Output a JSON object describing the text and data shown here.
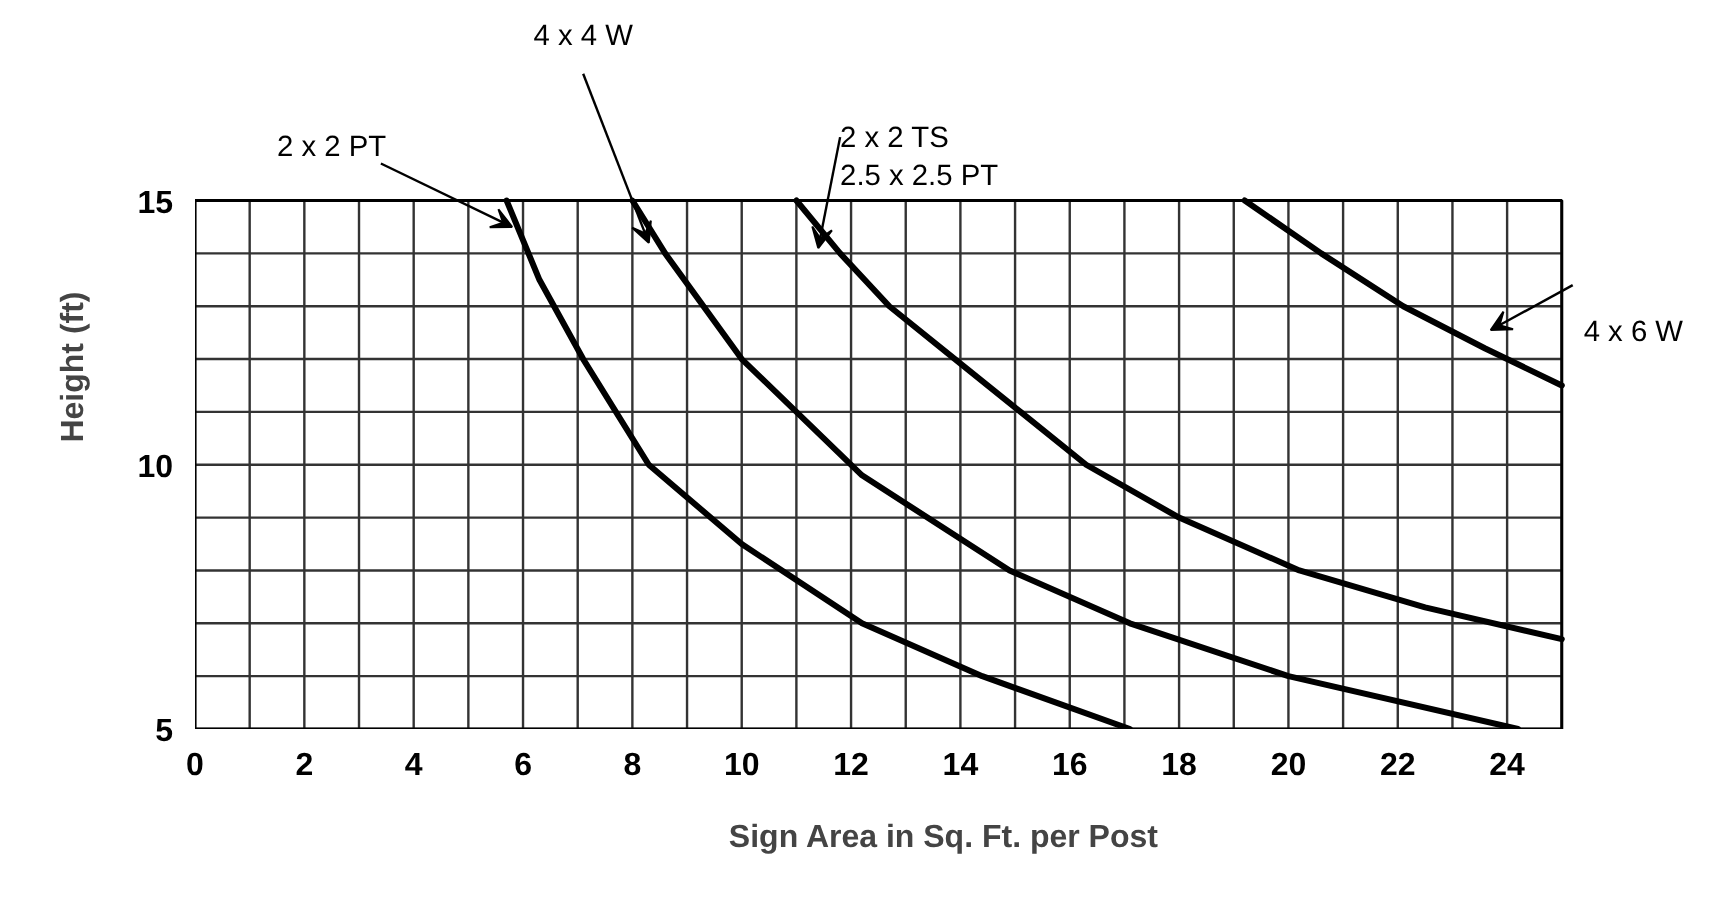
{
  "chart_data": {
    "type": "line",
    "xlabel": "Sign Area in Sq. Ft. per Post",
    "ylabel": "Height (ft)",
    "xlim": [
      0,
      25
    ],
    "ylim": [
      5,
      15
    ],
    "xticks": [
      0,
      {
        "value": 1,
        "label": null
      },
      2,
      {
        "value": 3,
        "label": null
      },
      4,
      {
        "value": 5,
        "label": null
      },
      6,
      {
        "value": 7,
        "label": null
      },
      8,
      {
        "value": 9,
        "label": null
      },
      10,
      {
        "value": 11,
        "label": null
      },
      12,
      {
        "value": 13,
        "label": null
      },
      14,
      {
        "value": 15,
        "label": null
      },
      16,
      {
        "value": 17,
        "label": null
      },
      18,
      {
        "value": 19,
        "label": null
      },
      20,
      {
        "value": 21,
        "label": null
      },
      22,
      {
        "value": 23,
        "label": null
      },
      24,
      {
        "value": 25,
        "label": null
      }
    ],
    "yticks": [
      5,
      {
        "value": 6,
        "label": null
      },
      {
        "value": 7,
        "label": null
      },
      {
        "value": 8,
        "label": null
      },
      {
        "value": 9,
        "label": null
      },
      10,
      {
        "value": 11,
        "label": null
      },
      {
        "value": 12,
        "label": null
      },
      {
        "value": 13,
        "label": null
      },
      {
        "value": 14,
        "label": null
      },
      15
    ],
    "grid": true,
    "legend": false,
    "marker": "none",
    "line_style": "solid",
    "series": [
      {
        "name": "2 x 2 PT",
        "color": "#000000",
        "x": [
          5.7,
          6.3,
          7.1,
          8.3,
          10.0,
          12.2,
          14.4,
          17.1
        ],
        "values": [
          15,
          13.5,
          12,
          10,
          8.5,
          7,
          6,
          5
        ]
      },
      {
        "name": "4 x 4 W",
        "color": "#000000",
        "x": [
          8.0,
          8.6,
          10.0,
          12.2,
          14.9,
          17.1,
          20.0,
          24.2
        ],
        "values": [
          15,
          14,
          12,
          9.8,
          8,
          7,
          6,
          5
        ]
      },
      {
        "name": "2 x 2 TS\n2.5 x 2.5 PT",
        "color": "#000000",
        "x": [
          11.0,
          11.8,
          12.7,
          13.9,
          15.1,
          16.3,
          18.0,
          20.2,
          22.5,
          25.0
        ],
        "values": [
          15,
          14,
          13,
          12,
          11,
          10,
          9,
          8,
          7.3,
          6.7
        ]
      },
      {
        "name": "4 x 6 W",
        "color": "#000000",
        "x": [
          19.2,
          20.6,
          22.1,
          23.6,
          25.0
        ],
        "values": [
          15,
          14,
          13,
          12.2,
          11.5
        ]
      }
    ]
  }
}
